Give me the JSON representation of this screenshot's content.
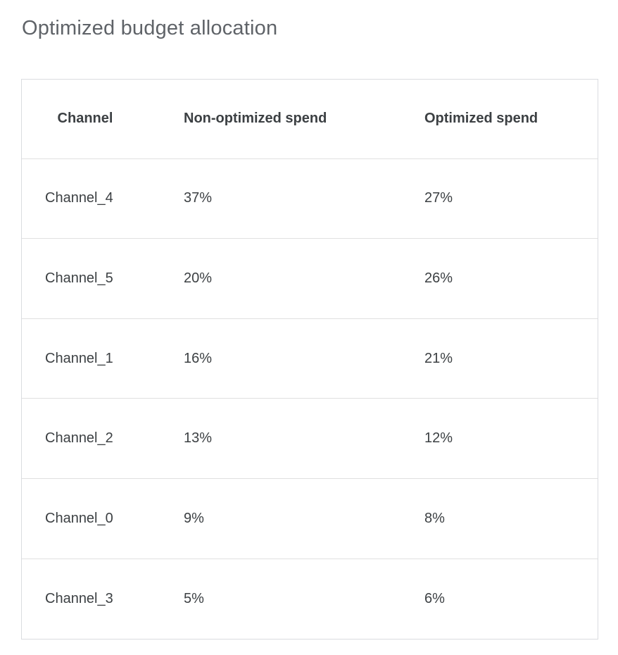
{
  "page": {
    "title": "Optimized budget allocation"
  },
  "table": {
    "columns": [
      "Channel",
      "Non-optimized spend",
      "Optimized spend"
    ],
    "rows": [
      {
        "channel": "Channel_4",
        "non_optimized": "37%",
        "optimized": "27%"
      },
      {
        "channel": "Channel_5",
        "non_optimized": "20%",
        "optimized": "26%"
      },
      {
        "channel": "Channel_1",
        "non_optimized": "16%",
        "optimized": "21%"
      },
      {
        "channel": "Channel_2",
        "non_optimized": "13%",
        "optimized": "12%"
      },
      {
        "channel": "Channel_0",
        "non_optimized": "9%",
        "optimized": "8%"
      },
      {
        "channel": "Channel_3",
        "non_optimized": "5%",
        "optimized": "6%"
      }
    ]
  },
  "chart_data": {
    "type": "table",
    "title": "Optimized budget allocation",
    "columns": [
      "Channel",
      "Non-optimized spend",
      "Optimized spend"
    ],
    "rows": [
      [
        "Channel_4",
        "37%",
        "27%"
      ],
      [
        "Channel_5",
        "20%",
        "26%"
      ],
      [
        "Channel_1",
        "16%",
        "21%"
      ],
      [
        "Channel_2",
        "13%",
        "12%"
      ],
      [
        "Channel_0",
        "9%",
        "8%"
      ],
      [
        "Channel_3",
        "5%",
        "6%"
      ]
    ],
    "non_optimized_spend_pct": {
      "Channel_4": 37,
      "Channel_5": 20,
      "Channel_1": 16,
      "Channel_2": 13,
      "Channel_0": 9,
      "Channel_3": 5
    },
    "optimized_spend_pct": {
      "Channel_4": 27,
      "Channel_5": 26,
      "Channel_1": 21,
      "Channel_2": 12,
      "Channel_0": 8,
      "Channel_3": 6
    }
  },
  "colors": {
    "title_text": "#5f6368",
    "header_text": "#3c4043",
    "cell_text": "#3c4043",
    "table_border": "#dadce0",
    "row_divider": "#e0e0e0",
    "background": "#ffffff"
  }
}
